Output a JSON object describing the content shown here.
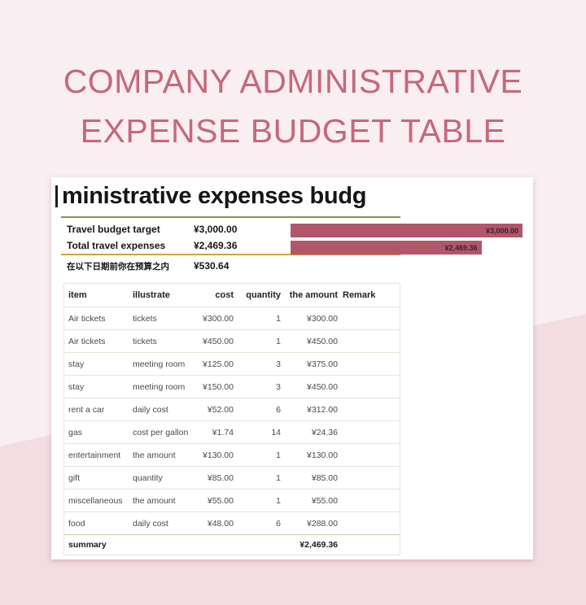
{
  "page": {
    "title_line1": "COMPANY ADMINISTRATIVE",
    "title_line2": "EXPENSE BUDGET TABLE"
  },
  "sheet": {
    "title": "ministrative expenses budg",
    "kpis": [
      {
        "label": "Travel budget target",
        "value": "¥3,000.00"
      },
      {
        "label": "Total travel expenses",
        "value": "¥2,469.36"
      }
    ],
    "note": {
      "label": "在以下日期前你在预算之内",
      "value": "¥530.64"
    },
    "bars": [
      {
        "label": "¥3,000.00",
        "value": 3000
      },
      {
        "label": "¥2,469.36",
        "value": 2469.36
      }
    ],
    "table": {
      "headers": [
        "item",
        "illustrate",
        "cost",
        "quantity",
        "the amount",
        "Remark"
      ],
      "rows": [
        [
          "Air tickets",
          "tickets",
          "¥300.00",
          "1",
          "¥300.00",
          ""
        ],
        [
          "Air tickets",
          "tickets",
          "¥450.00",
          "1",
          "¥450.00",
          ""
        ],
        [
          "stay",
          "meeting room",
          "¥125.00",
          "3",
          "¥375.00",
          ""
        ],
        [
          "stay",
          "meeting room",
          "¥150.00",
          "3",
          "¥450.00",
          ""
        ],
        [
          "rent a car",
          "daily cost",
          "¥52.00",
          "6",
          "¥312.00",
          ""
        ],
        [
          "gas",
          "cost per gallon",
          "¥1.74",
          "14",
          "¥24.36",
          ""
        ],
        [
          "entertainment",
          "the amount",
          "¥130.00",
          "1",
          "¥130.00",
          ""
        ],
        [
          "gift",
          "quantity",
          "¥85.00",
          "1",
          "¥85.00",
          ""
        ],
        [
          "miscellaneous",
          "the amount",
          "¥55.00",
          "1",
          "¥55.00",
          ""
        ],
        [
          "food",
          "daily cost",
          "¥48.00",
          "6",
          "¥288.00",
          ""
        ]
      ],
      "summary": {
        "label": "summary",
        "amount": "¥2,469.36"
      }
    }
  },
  "chart_data": {
    "type": "bar",
    "categories": [
      "Travel budget target",
      "Total travel expenses"
    ],
    "values": [
      3000,
      2469.36
    ],
    "title": "",
    "xlabel": "",
    "ylabel": "",
    "xlim": [
      0,
      3000
    ],
    "data_labels": [
      "¥3,000.00",
      "¥2,469.36"
    ],
    "legend": "none",
    "grid": false
  },
  "colors": {
    "bg_pink": "#f9eef1",
    "wedge_pink": "#f3dce2",
    "title_rose": "#c4697c",
    "bar_rose": "#b2566a",
    "bar_label": "#3a2028",
    "rule_olive": "#938e45",
    "rule_gold": "#d2a13f",
    "grid_line": "#e3e7d4",
    "summary_line": "#c9cfa0"
  }
}
